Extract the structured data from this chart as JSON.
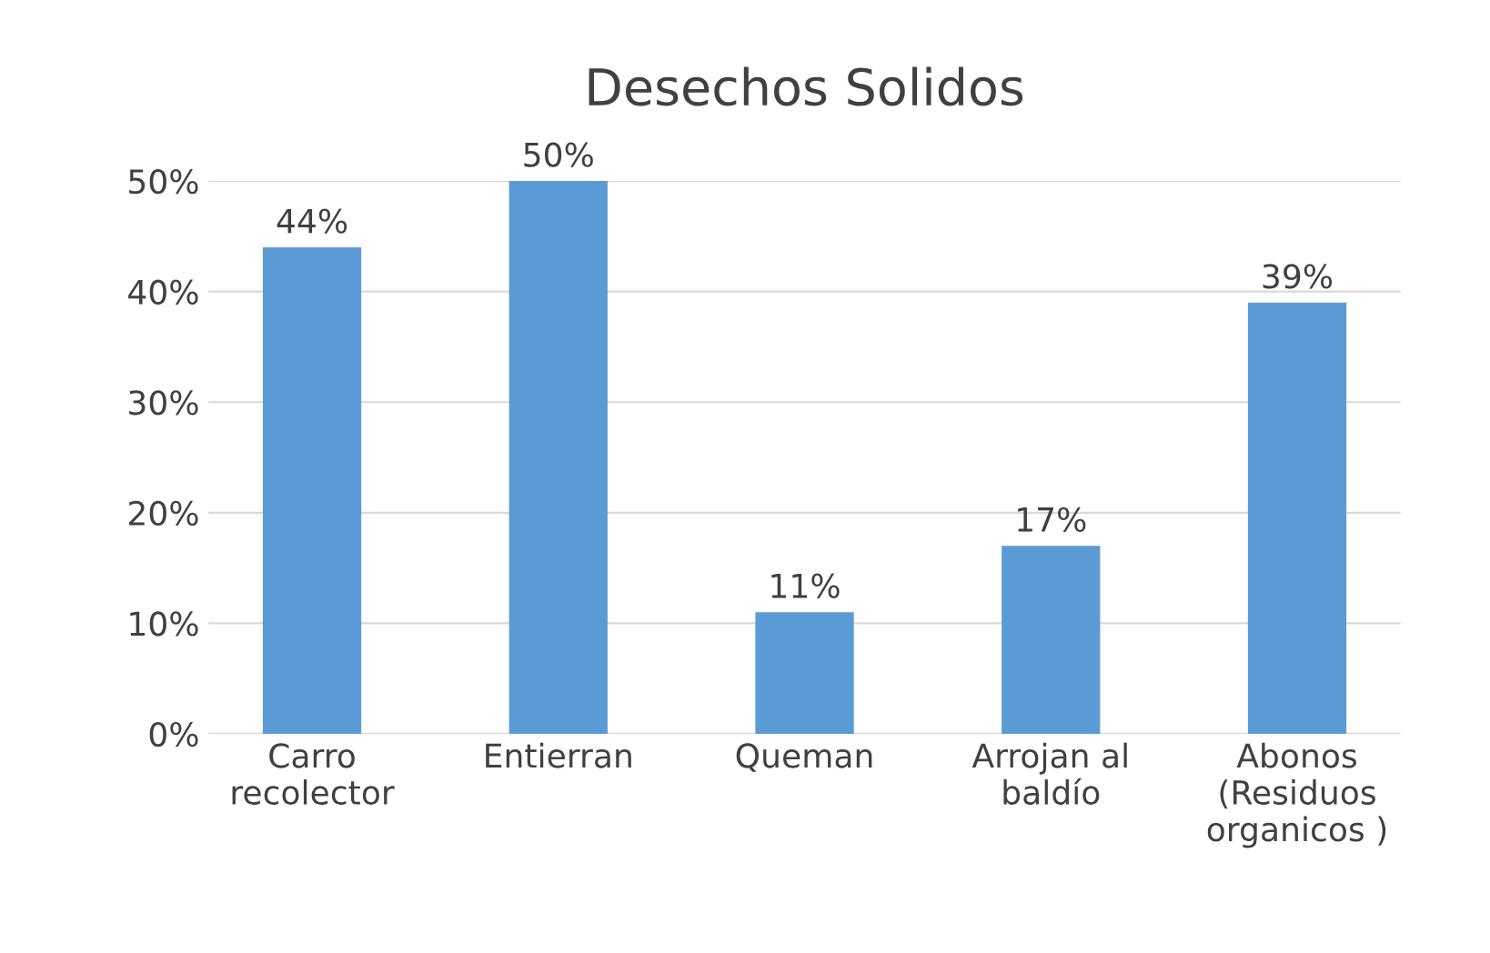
{
  "chart_data": {
    "type": "bar",
    "title": "Desechos Solidos",
    "categories": [
      "Carro\nrecolector",
      "Entierran",
      "Queman",
      "Arrojan al\nbaldío",
      "Abonos\n(Residuos\norganicos )"
    ],
    "values": [
      44,
      50,
      11,
      17,
      39
    ],
    "color": "#5b9bd5",
    "value_labels": [
      "44%",
      "50%",
      "11%",
      "17%",
      "39%"
    ],
    "ylim": [
      0,
      50
    ],
    "yticks": [
      {
        "value": 0,
        "label": "0%"
      },
      {
        "value": 10,
        "label": "10%"
      },
      {
        "value": 20,
        "label": "20%"
      },
      {
        "value": 30,
        "label": "30%"
      },
      {
        "value": 40,
        "label": "40%"
      },
      {
        "value": 50,
        "label": "50%"
      }
    ],
    "grid": "y",
    "legend": false
  }
}
